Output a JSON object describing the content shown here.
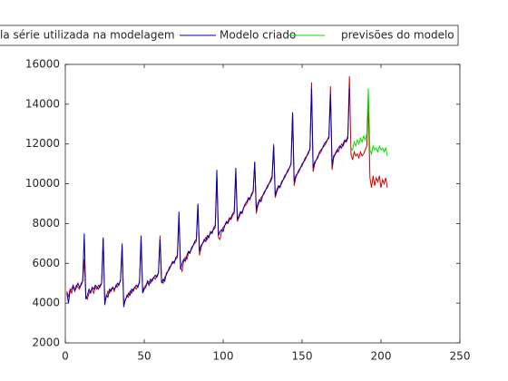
{
  "chart_data": {
    "type": "line",
    "x": [
      1,
      2,
      3,
      4,
      5,
      6,
      7,
      8,
      9,
      10,
      11,
      12,
      13,
      14,
      15,
      16,
      17,
      18,
      19,
      20,
      21,
      22,
      23,
      24,
      25,
      26,
      27,
      28,
      29,
      30,
      31,
      32,
      33,
      34,
      35,
      36,
      37,
      38,
      39,
      40,
      41,
      42,
      43,
      44,
      45,
      46,
      47,
      48,
      49,
      50,
      51,
      52,
      53,
      54,
      55,
      56,
      57,
      58,
      59,
      60,
      61,
      62,
      63,
      64,
      65,
      66,
      67,
      68,
      69,
      70,
      71,
      72,
      73,
      74,
      75,
      76,
      77,
      78,
      79,
      80,
      81,
      82,
      83,
      84,
      85,
      86,
      87,
      88,
      89,
      90,
      91,
      92,
      93,
      94,
      95,
      96,
      97,
      98,
      99,
      100,
      101,
      102,
      103,
      104,
      105,
      106,
      107,
      108,
      109,
      110,
      111,
      112,
      113,
      114,
      115,
      116,
      117,
      118,
      119,
      120,
      121,
      122,
      123,
      124,
      125,
      126,
      127,
      128,
      129,
      130,
      131,
      132,
      133,
      134,
      135,
      136,
      137,
      138,
      139,
      140,
      141,
      142,
      143,
      144,
      145,
      146,
      147,
      148,
      149,
      150,
      151,
      152,
      153,
      154,
      155,
      156,
      157,
      158,
      159,
      160,
      161,
      162,
      163,
      164,
      165,
      166,
      167,
      168,
      169,
      170,
      171,
      172,
      173,
      174,
      175,
      176,
      177,
      178,
      179,
      180,
      181,
      182,
      183,
      184,
      185,
      186,
      187,
      188,
      189,
      190,
      191,
      192,
      193,
      194,
      195,
      196,
      197,
      198,
      199,
      200,
      201,
      202,
      203,
      204
    ],
    "series": [
      {
        "name": "la série utilizada na modelagem",
        "color": "#d40000",
        "values": [
          4600,
          4300,
          4700,
          4500,
          4800,
          4700,
          4900,
          4800,
          4700,
          5000,
          5100,
          6200,
          4300,
          4200,
          4500,
          4600,
          4700,
          4500,
          4800,
          4700,
          4900,
          4800,
          5000,
          7200,
          4100,
          4300,
          4600,
          4500,
          4700,
          4800,
          4600,
          4900,
          4800,
          5000,
          5100,
          6800,
          4000,
          4100,
          4400,
          4300,
          4600,
          4500,
          4700,
          4800,
          4700,
          4900,
          5000,
          7200,
          4600,
          4800,
          4900,
          5000,
          5100,
          5000,
          5200,
          5300,
          5200,
          5400,
          5500,
          7400,
          5100,
          5000,
          5300,
          5400,
          5600,
          5700,
          5900,
          6000,
          6100,
          6200,
          6300,
          8300,
          5800,
          5600,
          6100,
          6300,
          6200,
          6500,
          6600,
          6700,
          6900,
          7000,
          7100,
          8900,
          6400,
          6800,
          7000,
          7100,
          7300,
          7200,
          7400,
          7500,
          7600,
          7700,
          7800,
          10400,
          7300,
          7200,
          7600,
          7800,
          7900,
          8000,
          8100,
          8300,
          8200,
          8400,
          8500,
          10500,
          8100,
          8300,
          8500,
          8600,
          8800,
          8900,
          9000,
          9200,
          9300,
          9400,
          9600,
          11100,
          8500,
          8900,
          9100,
          9300,
          9400,
          9600,
          9700,
          9900,
          10000,
          10200,
          10400,
          12000,
          9300,
          9600,
          9800,
          9900,
          10000,
          10200,
          10300,
          10500,
          10600,
          10800,
          11000,
          13500,
          9900,
          10300,
          10500,
          10600,
          10800,
          10900,
          11100,
          11200,
          11400,
          11500,
          11800,
          15100,
          10600,
          11000,
          11200,
          11400,
          11500,
          11600,
          11800,
          11900,
          12000,
          12200,
          12400,
          14900,
          10700,
          11300,
          11500,
          11700,
          11600,
          11800,
          12000,
          11900,
          12100,
          12200,
          12400,
          15400,
          11500,
          11200,
          11600,
          11400,
          11500,
          11300,
          11600,
          11400,
          11500,
          11700,
          11900,
          14000,
          10300,
          9800,
          10400,
          9900,
          10300,
          10100,
          10400,
          9800,
          10200,
          10000,
          10300,
          9800
        ]
      },
      {
        "name": "Modelo criado",
        "color": "#0000b4",
        "values": [
          4500,
          4000,
          4600,
          4700,
          4900,
          4600,
          4800,
          5000,
          4800,
          4900,
          5100,
          7500,
          4200,
          4400,
          4700,
          4500,
          4800,
          4700,
          4900,
          4800,
          4700,
          4900,
          5000,
          7300,
          3900,
          4400,
          4300,
          4700,
          4600,
          4800,
          4700,
          4800,
          5000,
          4900,
          5200,
          7000,
          3800,
          4200,
          4300,
          4500,
          4400,
          4700,
          4600,
          4800,
          4900,
          4800,
          5100,
          7400,
          4500,
          4700,
          4800,
          5100,
          4900,
          5200,
          5100,
          5300,
          5400,
          5300,
          5500,
          7200,
          5000,
          5200,
          5100,
          5500,
          5600,
          5800,
          5900,
          6100,
          6000,
          6300,
          6400,
          8600,
          5700,
          6000,
          6200,
          6100,
          6400,
          6600,
          6500,
          6800,
          6900,
          7100,
          7200,
          9000,
          6600,
          6900,
          7000,
          7200,
          7100,
          7400,
          7300,
          7600,
          7500,
          7800,
          7900,
          10700,
          7400,
          7600,
          7700,
          7600,
          7900,
          8100,
          8000,
          8200,
          8300,
          8500,
          8600,
          10800,
          8200,
          8400,
          8600,
          8500,
          8800,
          9000,
          9100,
          9300,
          9200,
          9500,
          9600,
          11100,
          8700,
          9000,
          9200,
          9100,
          9400,
          9500,
          9700,
          9800,
          10000,
          10100,
          10300,
          11900,
          9400,
          9700,
          9900,
          9800,
          10100,
          10200,
          10400,
          10500,
          10700,
          10800,
          11000,
          13600,
          10100,
          10400,
          10500,
          10700,
          10800,
          11000,
          11100,
          11300,
          11400,
          11600,
          11700,
          14800,
          10800,
          11100,
          11200,
          11300,
          11600,
          11700,
          11800,
          12000,
          12100,
          12200,
          12300,
          14500,
          10900,
          11400,
          11500,
          11600,
          11800,
          11900,
          11800,
          12000,
          12200,
          12100,
          12300,
          14800,
          null,
          null,
          null,
          null,
          null,
          null,
          null,
          null,
          null,
          null,
          null,
          null,
          null,
          null,
          null,
          null,
          null,
          null,
          null,
          null,
          null,
          null,
          null,
          null
        ]
      },
      {
        "name": "previsões do modelo",
        "color": "#00e000",
        "values": [
          null,
          null,
          null,
          null,
          null,
          null,
          null,
          null,
          null,
          null,
          null,
          null,
          null,
          null,
          null,
          null,
          null,
          null,
          null,
          null,
          null,
          null,
          null,
          null,
          null,
          null,
          null,
          null,
          null,
          null,
          null,
          null,
          null,
          null,
          null,
          null,
          null,
          null,
          null,
          null,
          null,
          null,
          null,
          null,
          null,
          null,
          null,
          null,
          null,
          null,
          null,
          null,
          null,
          null,
          null,
          null,
          null,
          null,
          null,
          null,
          null,
          null,
          null,
          null,
          null,
          null,
          null,
          null,
          null,
          null,
          null,
          null,
          null,
          null,
          null,
          null,
          null,
          null,
          null,
          null,
          null,
          null,
          null,
          null,
          null,
          null,
          null,
          null,
          null,
          null,
          null,
          null,
          null,
          null,
          null,
          null,
          null,
          null,
          null,
          null,
          null,
          null,
          null,
          null,
          null,
          null,
          null,
          null,
          null,
          null,
          null,
          null,
          null,
          null,
          null,
          null,
          null,
          null,
          null,
          null,
          null,
          null,
          null,
          null,
          null,
          null,
          null,
          null,
          null,
          null,
          null,
          null,
          null,
          null,
          null,
          null,
          null,
          null,
          null,
          null,
          null,
          null,
          null,
          null,
          null,
          null,
          null,
          null,
          null,
          null,
          null,
          null,
          null,
          null,
          null,
          null,
          null,
          null,
          null,
          null,
          null,
          null,
          null,
          null,
          null,
          null,
          null,
          null,
          null,
          null,
          null,
          null,
          null,
          null,
          null,
          null,
          null,
          null,
          null,
          null,
          11800,
          11700,
          12100,
          11900,
          12200,
          12000,
          12300,
          12100,
          12400,
          12200,
          12500,
          14800,
          11700,
          11500,
          11900,
          11700,
          11800,
          11600,
          11900,
          11700,
          11800,
          11600,
          11800,
          11400
        ]
      }
    ],
    "xlim": [
      0,
      250
    ],
    "xticks": [
      0,
      50,
      100,
      150,
      200,
      250
    ],
    "ylim": [
      2000,
      16000
    ],
    "yticks": [
      2000,
      4000,
      6000,
      8000,
      10000,
      12000,
      14000,
      16000
    ],
    "grid": false,
    "legend": "top"
  }
}
